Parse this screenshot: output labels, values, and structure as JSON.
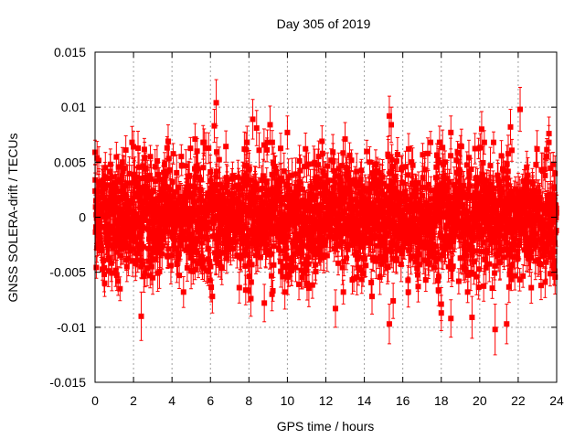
{
  "chart_data": {
    "type": "scatter",
    "title": "Day 305 of 2019",
    "xlabel": "GPS time / hours",
    "ylabel": "GNSS SOLERA-drift / TECUs",
    "xlim": [
      0,
      24
    ],
    "ylim": [
      -0.015,
      0.015
    ],
    "x_ticks": [
      0,
      2,
      4,
      6,
      8,
      10,
      12,
      14,
      16,
      18,
      20,
      22,
      24
    ],
    "x_tick_labels": [
      "0",
      "2",
      "4",
      "6",
      "8",
      "10",
      "12",
      "14",
      "16",
      "18",
      "20",
      "22",
      "24"
    ],
    "y_ticks": [
      -0.015,
      -0.01,
      -0.005,
      0,
      0.005,
      0.01,
      0.015
    ],
    "y_tick_labels": [
      "-0.015",
      "-0.01",
      "-0.005",
      "0",
      "0.005",
      "0.01",
      "0.015"
    ],
    "grid": true,
    "legend": "none",
    "marker": "filled-square",
    "error_bars": true,
    "series_color": "#ff0000",
    "series": [
      {
        "points": [
          {
            "x": 0.0,
            "y": 0.0059,
            "err": 0.0011
          },
          {
            "x": 0.1,
            "y": -0.0028,
            "err": 0.0013
          },
          {
            "x": 0.2,
            "y": 0.0032,
            "err": 0.0012
          },
          {
            "x": 0.5,
            "y": -0.006,
            "err": 0.0012
          },
          {
            "x": 0.8,
            "y": 0.0048,
            "err": 0.0014
          },
          {
            "x": 1.2,
            "y": -0.0058,
            "err": 0.0013
          },
          {
            "x": 1.6,
            "y": 0.0061,
            "err": 0.0013
          },
          {
            "x": 2.0,
            "y": 0.0064,
            "err": 0.0014
          },
          {
            "x": 2.4,
            "y": -0.009,
            "err": 0.0022
          },
          {
            "x": 3.0,
            "y": -0.0055,
            "err": 0.0015
          },
          {
            "x": 3.8,
            "y": 0.0069,
            "err": 0.0015
          },
          {
            "x": 4.6,
            "y": -0.0068,
            "err": 0.0014
          },
          {
            "x": 5.2,
            "y": 0.0071,
            "err": 0.0014
          },
          {
            "x": 6.1,
            "y": -0.0072,
            "err": 0.0015
          },
          {
            "x": 6.2,
            "y": 0.0083,
            "err": 0.0015
          },
          {
            "x": 6.3,
            "y": 0.0104,
            "err": 0.0021
          },
          {
            "x": 7.5,
            "y": -0.0064,
            "err": 0.0014
          },
          {
            "x": 8.1,
            "y": -0.0074,
            "err": 0.0016
          },
          {
            "x": 8.2,
            "y": 0.0089,
            "err": 0.0018
          },
          {
            "x": 8.4,
            "y": 0.0081,
            "err": 0.0016
          },
          {
            "x": 8.8,
            "y": -0.0078,
            "err": 0.0017
          },
          {
            "x": 9.1,
            "y": 0.0084,
            "err": 0.0017
          },
          {
            "x": 9.2,
            "y": -0.007,
            "err": 0.0015
          },
          {
            "x": 10.0,
            "y": 0.0077,
            "err": 0.0015
          },
          {
            "x": 10.6,
            "y": -0.0061,
            "err": 0.0014
          },
          {
            "x": 11.8,
            "y": 0.0069,
            "err": 0.0014
          },
          {
            "x": 12.5,
            "y": -0.0083,
            "err": 0.0017
          },
          {
            "x": 13.0,
            "y": 0.0071,
            "err": 0.0015
          },
          {
            "x": 14.4,
            "y": -0.0072,
            "err": 0.0016
          },
          {
            "x": 15.3,
            "y": 0.0092,
            "err": 0.0018
          },
          {
            "x": 15.3,
            "y": -0.0097,
            "err": 0.0018
          },
          {
            "x": 15.4,
            "y": 0.0084,
            "err": 0.0016
          },
          {
            "x": 15.5,
            "y": -0.0076,
            "err": 0.0016
          },
          {
            "x": 16.3,
            "y": 0.0062,
            "err": 0.0014
          },
          {
            "x": 16.8,
            "y": -0.0063,
            "err": 0.0014
          },
          {
            "x": 18.0,
            "y": -0.0087,
            "err": 0.0016
          },
          {
            "x": 18.0,
            "y": -0.0079,
            "err": 0.0015
          },
          {
            "x": 18.5,
            "y": -0.0092,
            "err": 0.0017
          },
          {
            "x": 18.5,
            "y": 0.0077,
            "err": 0.0015
          },
          {
            "x": 19.6,
            "y": -0.0091,
            "err": 0.0019
          },
          {
            "x": 20.1,
            "y": 0.008,
            "err": 0.0016
          },
          {
            "x": 20.8,
            "y": -0.0102,
            "err": 0.0023
          },
          {
            "x": 21.4,
            "y": -0.0097,
            "err": 0.0018
          },
          {
            "x": 21.6,
            "y": 0.0082,
            "err": 0.0016
          },
          {
            "x": 22.1,
            "y": 0.0098,
            "err": 0.002
          },
          {
            "x": 23.4,
            "y": -0.0059,
            "err": 0.0014
          },
          {
            "x": 23.6,
            "y": 0.0076,
            "err": 0.0015
          },
          {
            "x": 23.9,
            "y": -0.0049,
            "err": 0.0013
          }
        ]
      }
    ],
    "dense_band": {
      "x_range": [
        0,
        24
      ],
      "y_mean": 0.0,
      "y_sd": 0.0025,
      "err_typical": 0.0013
    }
  }
}
